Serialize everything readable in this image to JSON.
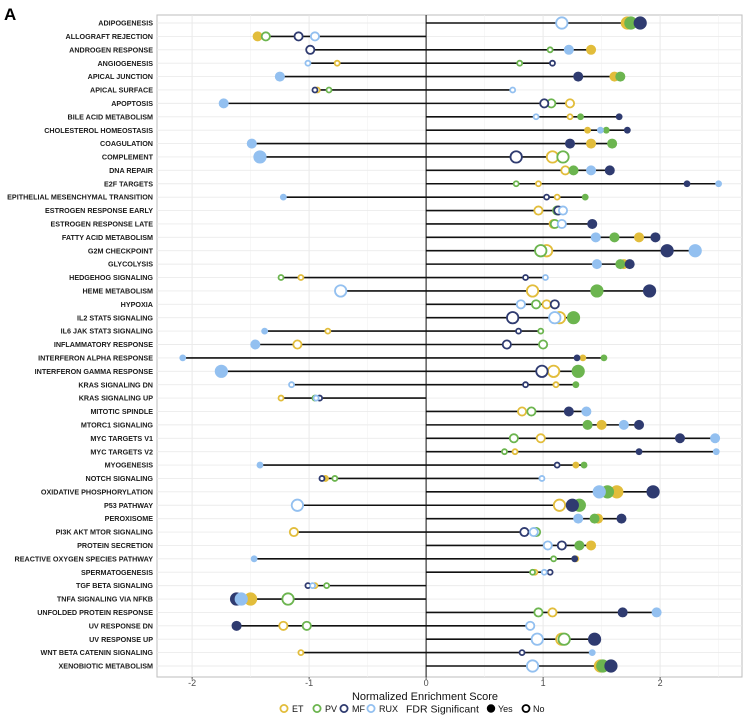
{
  "panel_label": "A",
  "chart_data": {
    "type": "scatter",
    "subtype": "lollipop-dot-plot",
    "xlabel": "Normalized Enrichment Score",
    "ylabel": "",
    "xlim": [
      -2.3,
      2.7
    ],
    "xticks": [
      -2,
      -1,
      0,
      1,
      2
    ],
    "xtick_labels": [
      "-2",
      "-1",
      "0",
      "1",
      "2"
    ],
    "grid": true,
    "legend_placement": "bottom",
    "legend": {
      "groups_title": "",
      "groups": [
        "ET",
        "PV",
        "MF",
        "RUX"
      ],
      "fdr_title": "FDR Significant",
      "fdr_yes": "Yes",
      "fdr_no": "No"
    },
    "colors": {
      "ET": "#E2BD3B",
      "PV": "#6CB54F",
      "MF": "#2F3B70",
      "RUX": "#93C0F0"
    },
    "categories": [
      "ADIPOGENESIS",
      "ALLOGRAFT REJECTION",
      "ANDROGEN RESPONSE",
      "ANGIOGENESIS",
      "APICAL JUNCTION",
      "APICAL SURFACE",
      "APOPTOSIS",
      "BILE ACID METABOLISM",
      "CHOLESTEROL HOMEOSTASIS",
      "COAGULATION",
      "COMPLEMENT",
      "DNA REPAIR",
      "E2F TARGETS",
      "EPITHELIAL MESENCHYMAL TRANSITION",
      "ESTROGEN RESPONSE EARLY",
      "ESTROGEN RESPONSE LATE",
      "FATTY ACID METABOLISM",
      "G2M CHECKPOINT",
      "GLYCOLYSIS",
      "HEDGEHOG SIGNALING",
      "HEME METABOLISM",
      "HYPOXIA",
      "IL2 STAT5 SIGNALING",
      "IL6 JAK STAT3 SIGNALING",
      "INFLAMMATORY RESPONSE",
      "INTERFERON ALPHA RESPONSE",
      "INTERFERON GAMMA RESPONSE",
      "KRAS SIGNALING DN",
      "KRAS SIGNALING UP",
      "MITOTIC SPINDLE",
      "MTORC1 SIGNALING",
      "MYC TARGETS V1",
      "MYC TARGETS V2",
      "MYOGENESIS",
      "NOTCH SIGNALING",
      "OXIDATIVE PHOSPHORYLATION",
      "P53 PATHWAY",
      "PEROXISOME",
      "PI3K AKT MTOR SIGNALING",
      "PROTEIN SECRETION",
      "REACTIVE OXYGEN SPECIES PATHWAY",
      "SPERMATOGENESIS",
      "TGF BETA SIGNALING",
      "TNFA SIGNALING VIA NFKB",
      "UNFOLDED PROTEIN RESPONSE",
      "UV RESPONSE DN",
      "UV RESPONSE UP",
      "WNT BETA CATENIN SIGNALING",
      "XENOBIOTIC METABOLISM"
    ],
    "series": [
      {
        "name": "ET",
        "values": [
          1.72,
          -1.44,
          1.41,
          -0.76,
          1.61,
          -0.93,
          1.23,
          1.23,
          1.38,
          1.41,
          1.08,
          1.19,
          0.96,
          1.12,
          0.96,
          1.09,
          1.82,
          1.03,
          1.69,
          -1.07,
          0.91,
          1.03,
          1.14,
          -0.84,
          -1.1,
          1.34,
          1.09,
          1.11,
          -1.24,
          0.82,
          1.5,
          0.98,
          0.76,
          1.28,
          -0.86,
          1.63,
          1.14,
          1.47,
          -1.13,
          1.41,
          1.28,
          0.93,
          -0.95,
          -1.5,
          1.08,
          -1.22,
          1.16,
          -1.07,
          1.49
        ],
        "fdr_significant": [
          1,
          1,
          1,
          0,
          1,
          0,
          0,
          0,
          1,
          1,
          0,
          0,
          0,
          0,
          0,
          0,
          1,
          0,
          1,
          0,
          0,
          0,
          0,
          0,
          0,
          1,
          0,
          0,
          0,
          0,
          1,
          0,
          0,
          1,
          1,
          1,
          0,
          1,
          0,
          1,
          1,
          0,
          0,
          1,
          0,
          0,
          0,
          0,
          1
        ],
        "size_class": [
          3,
          2,
          2,
          1,
          2,
          1,
          2,
          1,
          1,
          2,
          3,
          2,
          1,
          1,
          2,
          2,
          2,
          3,
          2,
          1,
          3,
          2,
          3,
          1,
          2,
          1,
          3,
          1,
          1,
          2,
          2,
          2,
          1,
          1,
          1,
          3,
          3,
          2,
          2,
          2,
          1,
          1,
          1,
          3,
          2,
          2,
          3,
          1,
          3
        ]
      },
      {
        "name": "PV",
        "values": [
          1.75,
          -1.37,
          1.06,
          0.8,
          1.66,
          -0.83,
          1.07,
          1.32,
          1.54,
          1.59,
          1.17,
          1.26,
          0.77,
          1.36,
          1.12,
          1.1,
          1.61,
          0.98,
          1.66,
          -1.24,
          1.46,
          0.94,
          1.26,
          0.98,
          1.0,
          1.52,
          1.3,
          1.28,
          -0.95,
          0.9,
          1.38,
          0.75,
          0.67,
          1.35,
          -0.78,
          1.55,
          1.31,
          1.44,
          0.94,
          1.31,
          1.09,
          0.91,
          -0.85,
          -1.18,
          0.96,
          -1.02,
          1.18,
          null,
          1.51
        ],
        "fdr_significant": [
          1,
          0,
          0,
          0,
          1,
          0,
          0,
          1,
          1,
          1,
          0,
          1,
          0,
          1,
          0,
          0,
          1,
          0,
          1,
          0,
          1,
          0,
          1,
          0,
          0,
          1,
          1,
          1,
          0,
          0,
          1,
          0,
          0,
          1,
          0,
          1,
          1,
          1,
          0,
          1,
          0,
          0,
          0,
          0,
          0,
          0,
          0,
          0,
          1
        ],
        "size_class": [
          3,
          2,
          1,
          1,
          2,
          1,
          2,
          1,
          1,
          2,
          3,
          2,
          1,
          1,
          2,
          2,
          2,
          3,
          2,
          1,
          3,
          2,
          3,
          1,
          2,
          1,
          3,
          1,
          1,
          2,
          2,
          2,
          1,
          1,
          1,
          3,
          3,
          2,
          2,
          2,
          1,
          1,
          1,
          3,
          2,
          2,
          3,
          1,
          3
        ]
      },
      {
        "name": "MF",
        "values": [
          1.83,
          -1.09,
          -0.99,
          1.08,
          1.3,
          -0.95,
          1.01,
          1.65,
          1.72,
          1.23,
          0.77,
          1.57,
          2.23,
          1.03,
          1.13,
          1.42,
          1.96,
          2.06,
          1.74,
          0.85,
          1.91,
          1.1,
          0.74,
          0.79,
          0.69,
          1.29,
          0.99,
          0.85,
          -0.91,
          1.22,
          1.82,
          2.17,
          1.82,
          1.12,
          -0.89,
          1.94,
          1.25,
          1.67,
          0.84,
          1.16,
          1.27,
          1.06,
          -1.01,
          -1.62,
          1.68,
          -1.62,
          1.44,
          0.82,
          1.58
        ],
        "fdr_significant": [
          1,
          0,
          0,
          0,
          1,
          0,
          0,
          1,
          1,
          1,
          0,
          1,
          1,
          0,
          0,
          1,
          1,
          1,
          1,
          0,
          1,
          0,
          0,
          0,
          0,
          1,
          0,
          0,
          0,
          1,
          1,
          1,
          1,
          0,
          0,
          1,
          1,
          1,
          0,
          0,
          1,
          0,
          0,
          1,
          1,
          1,
          1,
          0,
          1
        ],
        "size_class": [
          3,
          2,
          2,
          1,
          2,
          1,
          2,
          1,
          1,
          2,
          3,
          2,
          1,
          1,
          2,
          2,
          2,
          3,
          2,
          1,
          3,
          2,
          3,
          1,
          2,
          1,
          3,
          1,
          1,
          2,
          2,
          2,
          1,
          1,
          1,
          3,
          3,
          2,
          2,
          2,
          1,
          1,
          1,
          3,
          2,
          2,
          3,
          1,
          3
        ]
      },
      {
        "name": "RUX",
        "values": [
          1.16,
          -0.95,
          1.22,
          -1.01,
          -1.25,
          0.74,
          -1.73,
          0.94,
          1.49,
          -1.49,
          -1.42,
          1.41,
          2.5,
          -1.22,
          1.17,
          1.16,
          1.45,
          2.3,
          1.46,
          1.02,
          -0.73,
          0.81,
          1.1,
          -1.38,
          -1.46,
          -2.08,
          -1.75,
          -1.15,
          -0.94,
          1.37,
          1.69,
          2.47,
          2.48,
          -1.42,
          0.99,
          1.48,
          -1.1,
          1.3,
          0.92,
          1.04,
          -1.47,
          1.01,
          -0.97,
          -1.58,
          1.97,
          0.89,
          0.95,
          1.42,
          0.91
        ],
        "fdr_significant": [
          0,
          0,
          1,
          0,
          1,
          0,
          1,
          0,
          1,
          1,
          1,
          1,
          1,
          1,
          0,
          0,
          1,
          1,
          1,
          0,
          0,
          0,
          0,
          1,
          1,
          1,
          1,
          0,
          0,
          1,
          1,
          1,
          1,
          1,
          0,
          1,
          0,
          1,
          0,
          0,
          1,
          0,
          0,
          1,
          1,
          0,
          0,
          1,
          0
        ],
        "size_class": [
          3,
          2,
          2,
          1,
          2,
          1,
          2,
          1,
          1,
          2,
          3,
          2,
          1,
          1,
          2,
          2,
          2,
          3,
          2,
          1,
          3,
          2,
          3,
          1,
          2,
          1,
          3,
          1,
          1,
          2,
          2,
          2,
          1,
          1,
          1,
          3,
          3,
          2,
          2,
          2,
          1,
          1,
          1,
          3,
          2,
          2,
          3,
          1,
          3
        ]
      }
    ]
  }
}
